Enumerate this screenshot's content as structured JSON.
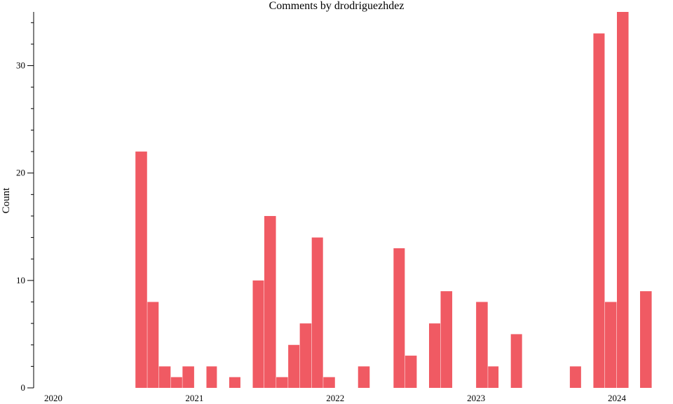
{
  "chart_data": {
    "type": "bar",
    "title": "Comments by drodriguezhdez",
    "xlabel": "",
    "ylabel": "Count",
    "bar_color": "#f05a63",
    "x_ticks": [
      "2020",
      "2021",
      "2022",
      "2023",
      "2024"
    ],
    "y_ticks": [
      0,
      10,
      20,
      30
    ],
    "ylim": [
      0,
      35
    ],
    "grid": false,
    "legend": "none",
    "bars": [
      {
        "start": "2020-08-01",
        "end": "2020-09-01",
        "value": 22
      },
      {
        "start": "2020-09-01",
        "end": "2020-10-01",
        "value": 8
      },
      {
        "start": "2020-10-01",
        "end": "2020-11-01",
        "value": 2
      },
      {
        "start": "2020-11-01",
        "end": "2020-12-01",
        "value": 1
      },
      {
        "start": "2020-12-01",
        "end": "2021-01-01",
        "value": 2
      },
      {
        "start": "2021-01-01",
        "end": "2021-02-01",
        "value": 0
      },
      {
        "start": "2021-02-01",
        "end": "2021-03-01",
        "value": 2
      },
      {
        "start": "2021-04-01",
        "end": "2021-05-01",
        "value": 1
      },
      {
        "start": "2021-06-01",
        "end": "2021-07-01",
        "value": 10
      },
      {
        "start": "2021-07-01",
        "end": "2021-08-01",
        "value": 16
      },
      {
        "start": "2021-08-01",
        "end": "2021-09-01",
        "value": 1
      },
      {
        "start": "2021-09-01",
        "end": "2021-10-01",
        "value": 4
      },
      {
        "start": "2021-10-01",
        "end": "2021-11-01",
        "value": 6
      },
      {
        "start": "2021-11-01",
        "end": "2021-12-01",
        "value": 14
      },
      {
        "start": "2021-12-01",
        "end": "2022-01-01",
        "value": 1
      },
      {
        "start": "2022-03-01",
        "end": "2022-04-01",
        "value": 2
      },
      {
        "start": "2022-06-01",
        "end": "2022-07-01",
        "value": 13
      },
      {
        "start": "2022-07-01",
        "end": "2022-08-01",
        "value": 3
      },
      {
        "start": "2022-09-01",
        "end": "2022-10-01",
        "value": 6
      },
      {
        "start": "2022-10-01",
        "end": "2022-11-01",
        "value": 9
      },
      {
        "start": "2023-01-01",
        "end": "2023-02-01",
        "value": 8
      },
      {
        "start": "2023-02-01",
        "end": "2023-03-01",
        "value": 2
      },
      {
        "start": "2023-04-01",
        "end": "2023-05-01",
        "value": 5
      },
      {
        "start": "2023-09-01",
        "end": "2023-10-01",
        "value": 2
      },
      {
        "start": "2023-11-01",
        "end": "2023-12-01",
        "value": 33
      },
      {
        "start": "2023-12-01",
        "end": "2024-01-01",
        "value": 8
      },
      {
        "start": "2024-01-01",
        "end": "2024-02-01",
        "value": 35
      },
      {
        "start": "2024-02-01",
        "end": "2024-03-01",
        "value": 0
      },
      {
        "start": "2024-03-01",
        "end": "2024-04-01",
        "value": 9
      }
    ]
  }
}
